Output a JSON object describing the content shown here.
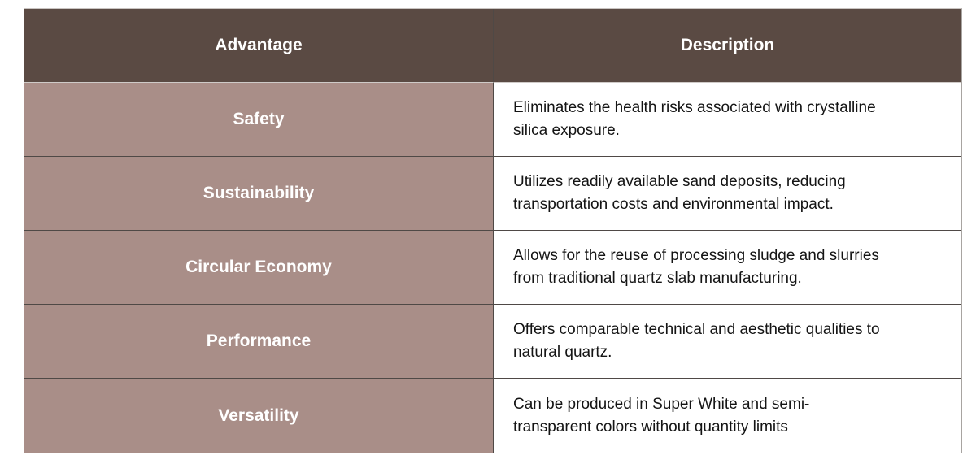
{
  "table": {
    "columns": [
      {
        "label": "Advantage"
      },
      {
        "label": "Description"
      }
    ],
    "rows": [
      {
        "advantage": "Safety",
        "description": "Eliminates the health risks associated with crystalline\nsilica exposure."
      },
      {
        "advantage": "Sustainability",
        "description": "Utilizes readily available sand deposits, reducing\ntransportation costs and environmental impact."
      },
      {
        "advantage": "Circular Economy",
        "description": "Allows for the reuse of processing sludge and slurries\nfrom traditional quartz slab manufacturing."
      },
      {
        "advantage": "Performance",
        "description": "Offers comparable technical and aesthetic qualities to\nnatural quartz."
      },
      {
        "advantage": "Versatility",
        "description": "Can be produced in Super White and semi-\ntransparent colors without quantity limits"
      }
    ],
    "colors": {
      "header_bg": "#5a4a43",
      "header_text": "#ffffff",
      "advantage_bg": "#a98e88",
      "advantage_text": "#ffffff",
      "description_bg": "#ffffff",
      "description_text": "#141414",
      "grid_line": "#4f4946",
      "outer_border": "#a8a4a1"
    }
  }
}
